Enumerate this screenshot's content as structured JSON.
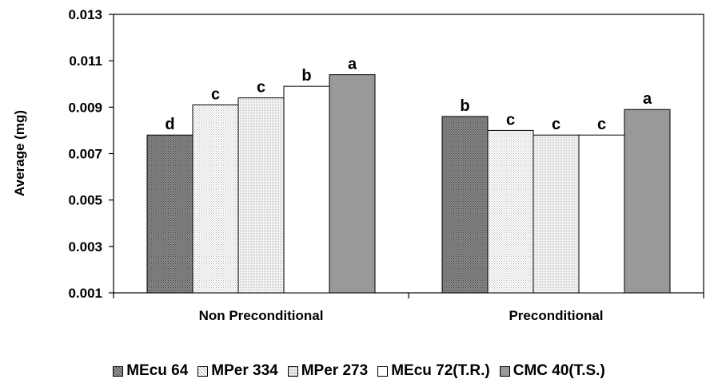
{
  "chart_data": {
    "type": "bar",
    "categories": [
      "Non Preconditional",
      "Preconditional"
    ],
    "series": [
      {
        "name": "MEcu 64",
        "values": [
          0.0078,
          0.0086
        ],
        "labels": [
          "d",
          "b"
        ],
        "pattern": "dark-dots",
        "color": "#7a7a7a"
      },
      {
        "name": "MPer 334",
        "values": [
          0.0091,
          0.008
        ],
        "labels": [
          "c",
          "c"
        ],
        "pattern": "light-dots",
        "color": "#f2f2f2"
      },
      {
        "name": "MPer 273",
        "values": [
          0.0094,
          0.0078
        ],
        "labels": [
          "c",
          "c"
        ],
        "pattern": "light-grid",
        "color": "#e6e6e6"
      },
      {
        "name": "MEcu 72(T.R.)",
        "values": [
          0.0099,
          0.0078
        ],
        "labels": [
          "b",
          "c"
        ],
        "pattern": "solid",
        "color": "#ffffff"
      },
      {
        "name": "CMC 40(T.S.)",
        "values": [
          0.0104,
          0.0089
        ],
        "labels": [
          "a",
          "a"
        ],
        "pattern": "solid",
        "color": "#999999"
      }
    ],
    "ylabel": "Average (mg)",
    "xlabel": "",
    "ylim": [
      0.001,
      0.013
    ],
    "yticks": [
      "0.001",
      "0.003",
      "0.005",
      "0.007",
      "0.009",
      "0.011",
      "0.013"
    ],
    "grid": false,
    "legend_position": "bottom"
  }
}
